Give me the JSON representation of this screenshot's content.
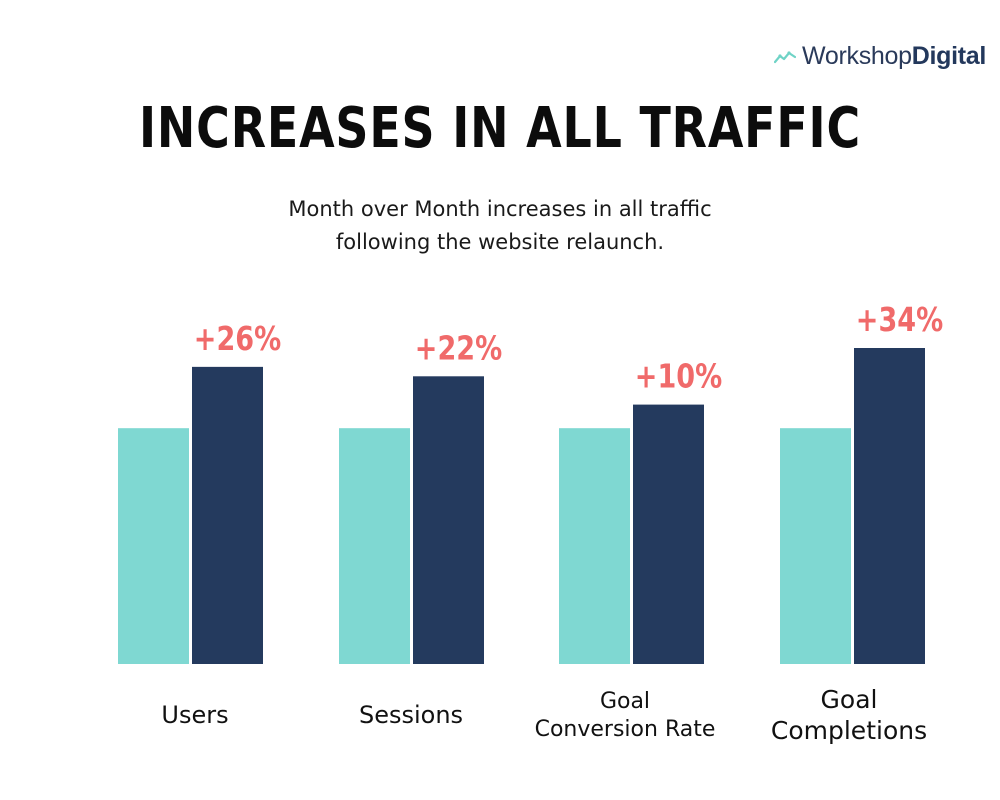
{
  "brand": {
    "name_light": "Workshop",
    "name_bold": "Digital",
    "icon": "trend-line-icon"
  },
  "header": {
    "title": "INCREASES IN ALL TRAFFIC",
    "subtitle_lines": [
      "Month over Month increases in all traffic",
      "following the website relaunch."
    ]
  },
  "colors": {
    "baseline": "#7fd8d2",
    "current": "#243a5e",
    "label": "#f06a6a",
    "text": "#111111"
  },
  "chart_data": {
    "type": "bar",
    "title": "INCREASES IN ALL TRAFFIC",
    "subtitle": "Month over Month increases in all traffic following the website relaunch.",
    "categories": [
      "Users",
      "Sessions",
      "Goal Conversion Rate",
      "Goal Completions"
    ],
    "category_lines": [
      [
        "Users"
      ],
      [
        "Sessions"
      ],
      [
        "Goal",
        "Conversion Rate"
      ],
      [
        "Goal",
        "Completions"
      ]
    ],
    "series": [
      {
        "values": [
          100,
          100,
          100,
          100
        ]
      },
      {
        "values": [
          126,
          122,
          110,
          134
        ]
      }
    ],
    "data_labels": [
      "+26%",
      "+22%",
      "+10%",
      "+34%"
    ],
    "ylim": [
      0,
      134
    ],
    "grid": false,
    "legend": "none"
  }
}
